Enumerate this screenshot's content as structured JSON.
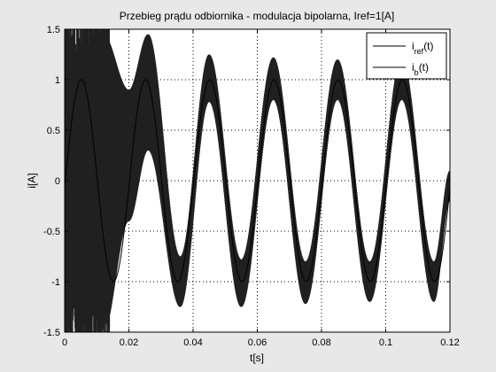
{
  "chart_data": {
    "type": "line",
    "title": "Przebieg prądu odbiornika - modulacja bipolarna, Iref=1[A]",
    "xlabel": "t[s]",
    "ylabel": "i[A]",
    "xlim": [
      0,
      0.12
    ],
    "ylim": [
      -1.5,
      1.5
    ],
    "xticks": [
      0,
      0.02,
      0.04,
      0.06,
      0.08,
      0.1,
      0.12
    ],
    "xtick_labels": [
      "0",
      "0.02",
      "0.04",
      "0.06",
      "0.08",
      "0.1",
      "0.12"
    ],
    "yticks": [
      -1.5,
      -1,
      -0.5,
      0,
      0.5,
      1,
      1.5
    ],
    "ytick_labels": [
      "-1.5",
      "-1",
      "-0.5",
      "0",
      "0.5",
      "1",
      "1.5"
    ],
    "grid": true,
    "grid_style": "dotted",
    "legend_position": "top-right",
    "legend": [
      {
        "base": "i",
        "sub": "ref",
        "suffix": "(t)"
      },
      {
        "base": "i",
        "sub": "b",
        "suffix": "(t)"
      }
    ],
    "series": [
      {
        "name": "iref(t)",
        "kind": "sine",
        "amplitude": 1.0,
        "frequency_hz": 50,
        "phase_shift_s": -0.0002,
        "x_range": [
          0,
          0.12
        ],
        "color": "#000000"
      },
      {
        "name": "ib(t)",
        "kind": "pwm-ripple-band",
        "x_range": [
          0,
          0.12
        ],
        "color": "#202020",
        "envelope": [
          {
            "t": 0.0,
            "upper": 1.5,
            "lower": -1.5
          },
          {
            "t": 0.008,
            "upper": 1.5,
            "lower": -1.5
          },
          {
            "t": 0.012,
            "upper": 1.45,
            "lower": -1.5
          },
          {
            "t": 0.02,
            "upper": 0.9,
            "lower": -0.4
          },
          {
            "t": 0.026,
            "upper": 1.45,
            "lower": 0.3
          },
          {
            "t": 0.036,
            "upper": -0.75,
            "lower": -1.25
          },
          {
            "t": 0.045,
            "upper": 1.25,
            "lower": 0.78
          },
          {
            "t": 0.055,
            "upper": -0.78,
            "lower": -1.25
          },
          {
            "t": 0.065,
            "upper": 1.22,
            "lower": 0.8
          },
          {
            "t": 0.075,
            "upper": -0.8,
            "lower": -1.22
          },
          {
            "t": 0.085,
            "upper": 1.2,
            "lower": 0.8
          },
          {
            "t": 0.095,
            "upper": -0.8,
            "lower": -1.2
          },
          {
            "t": 0.105,
            "upper": 1.22,
            "lower": 0.8
          },
          {
            "t": 0.115,
            "upper": -0.8,
            "lower": -1.2
          },
          {
            "t": 0.12,
            "upper": 0.1,
            "lower": -0.2
          }
        ]
      }
    ]
  }
}
